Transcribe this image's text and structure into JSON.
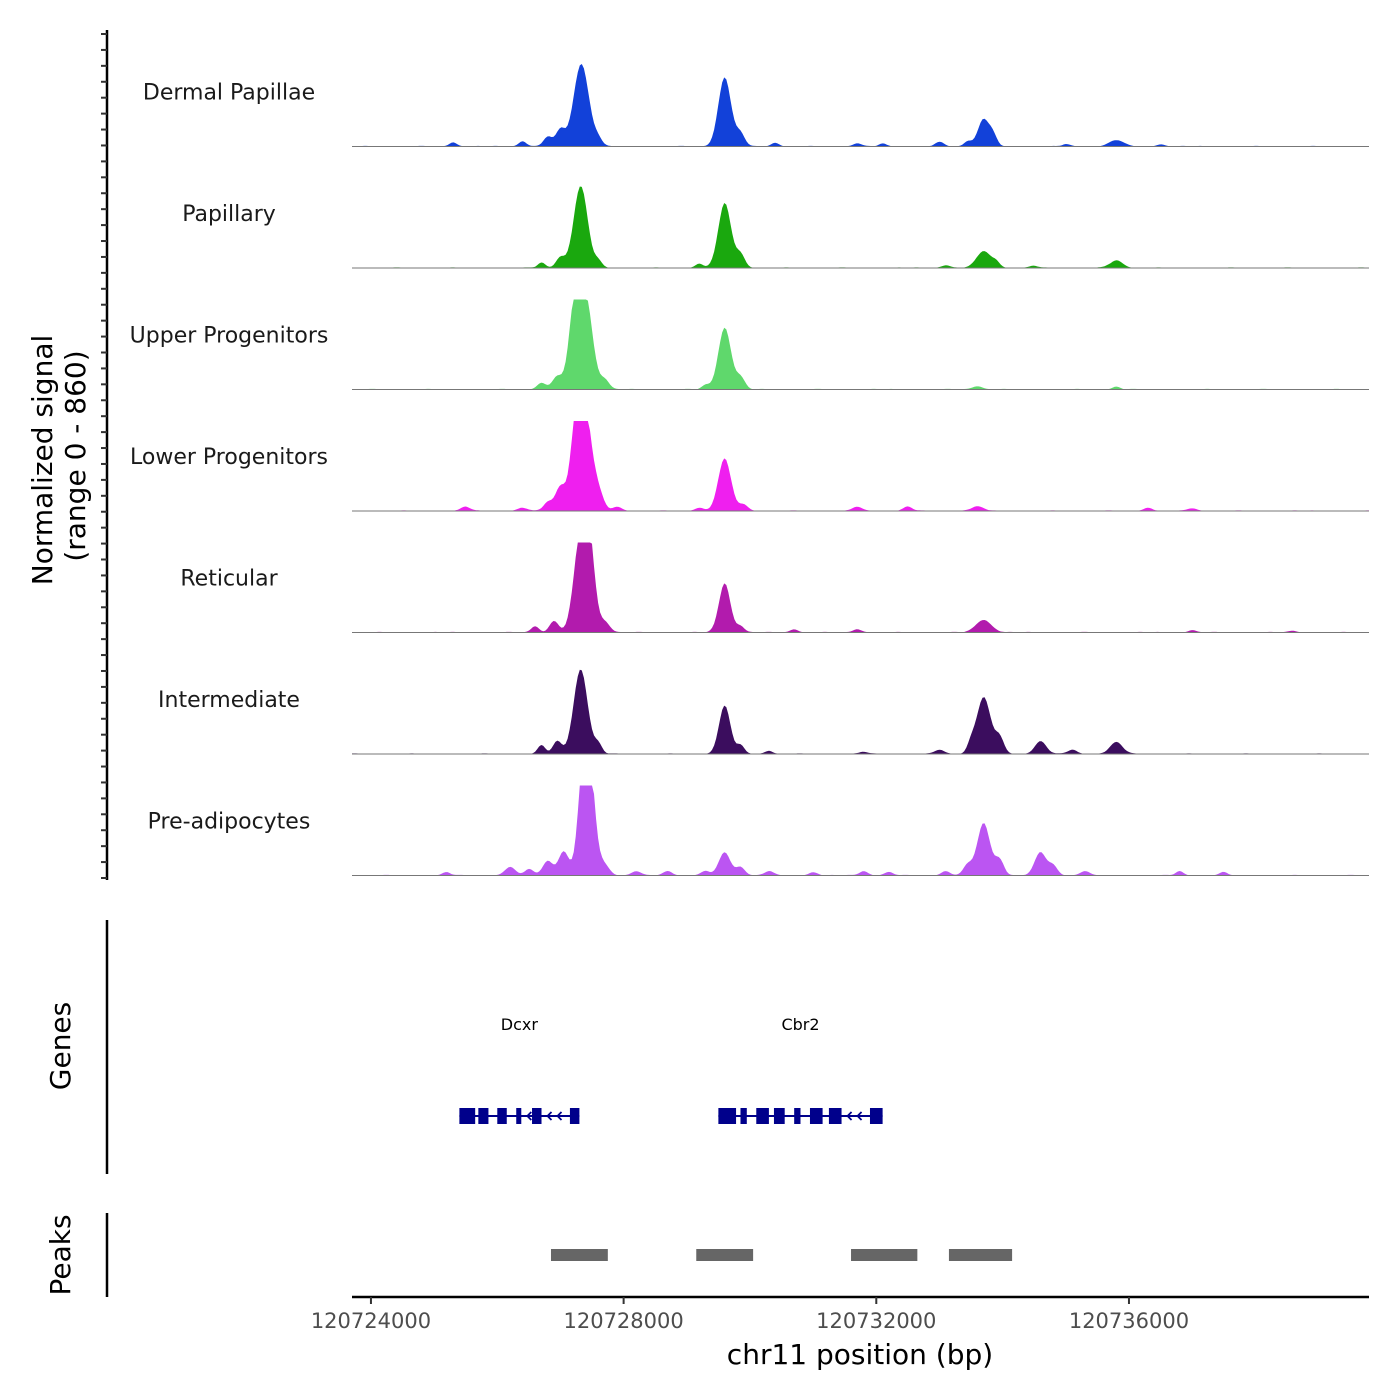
{
  "chart_data": {
    "type": "area",
    "chromosome": "chr11",
    "x_range": [
      120723700,
      120739800
    ],
    "y_label_line1": "Normalized signal",
    "y_label_line2": "(range 0 - 860)",
    "y_range": [
      0,
      860
    ],
    "xlabel": "chr11 position (bp)",
    "x_ticks": [
      {
        "value": 120724000,
        "label": "120724000"
      },
      {
        "value": 120728000,
        "label": "120728000"
      },
      {
        "value": 120732000,
        "label": "120732000"
      },
      {
        "value": 120736000,
        "label": "120736000"
      }
    ],
    "tracks": [
      {
        "name": "Dermal Papillae",
        "color": "#1241d9",
        "peaks": [
          [
            120725300,
            40,
            60
          ],
          [
            120726400,
            50,
            60
          ],
          [
            120726800,
            90,
            70
          ],
          [
            120727000,
            160,
            70
          ],
          [
            120727330,
            790,
            120
          ],
          [
            120727600,
            60,
            60
          ],
          [
            120729600,
            660,
            100
          ],
          [
            120729850,
            120,
            70
          ],
          [
            120730400,
            35,
            60
          ],
          [
            120731700,
            30,
            60
          ],
          [
            120732100,
            25,
            60
          ],
          [
            120733000,
            40,
            70
          ],
          [
            120733450,
            50,
            60
          ],
          [
            120733700,
            260,
            90
          ],
          [
            120733850,
            90,
            60
          ],
          [
            120735000,
            20,
            60
          ],
          [
            120735800,
            60,
            110
          ],
          [
            120736500,
            20,
            60
          ]
        ]
      },
      {
        "name": "Papillary",
        "color": "#1aa80e",
        "peaks": [
          [
            120726700,
            50,
            60
          ],
          [
            120727000,
            100,
            70
          ],
          [
            120727320,
            780,
            110
          ],
          [
            120727600,
            60,
            60
          ],
          [
            120729200,
            40,
            60
          ],
          [
            120729600,
            620,
            100
          ],
          [
            120729850,
            130,
            70
          ],
          [
            120733100,
            25,
            70
          ],
          [
            120733700,
            160,
            110
          ],
          [
            120733900,
            50,
            60
          ],
          [
            120734500,
            20,
            60
          ],
          [
            120735800,
            70,
            100
          ]
        ]
      },
      {
        "name": "Upper Progenitors",
        "color": "#5fd86c",
        "peaks": [
          [
            120726700,
            60,
            70
          ],
          [
            120726950,
            120,
            80
          ],
          [
            120727220,
            720,
            90
          ],
          [
            120727400,
            850,
            110
          ],
          [
            120727700,
            90,
            70
          ],
          [
            120729300,
            40,
            60
          ],
          [
            120729600,
            590,
            100
          ],
          [
            120729850,
            110,
            70
          ],
          [
            120733600,
            30,
            80
          ],
          [
            120735800,
            25,
            60
          ]
        ]
      },
      {
        "name": "Lower Progenitors",
        "color": "#ef1fef",
        "peaks": [
          [
            120725500,
            40,
            70
          ],
          [
            120726400,
            30,
            70
          ],
          [
            120726800,
            80,
            70
          ],
          [
            120727000,
            230,
            80
          ],
          [
            120727250,
            800,
            90
          ],
          [
            120727400,
            850,
            100
          ],
          [
            120727600,
            170,
            80
          ],
          [
            120727900,
            40,
            70
          ],
          [
            120729200,
            30,
            70
          ],
          [
            120729600,
            500,
            100
          ],
          [
            120729900,
            60,
            70
          ],
          [
            120731700,
            40,
            70
          ],
          [
            120732500,
            40,
            70
          ],
          [
            120733600,
            40,
            100
          ],
          [
            120736300,
            30,
            70
          ],
          [
            120737000,
            25,
            70
          ]
        ]
      },
      {
        "name": "Reticular",
        "color": "#b21bad",
        "peaks": [
          [
            120726600,
            60,
            60
          ],
          [
            120726900,
            110,
            70
          ],
          [
            120727300,
            780,
            100
          ],
          [
            120727450,
            860,
            90
          ],
          [
            120727700,
            100,
            80
          ],
          [
            120729600,
            470,
            90
          ],
          [
            120729850,
            60,
            60
          ],
          [
            120730700,
            30,
            60
          ],
          [
            120731700,
            30,
            70
          ],
          [
            120733700,
            120,
            120
          ],
          [
            120737000,
            20,
            60
          ],
          [
            120738600,
            15,
            60
          ]
        ]
      },
      {
        "name": "Intermediate",
        "color": "#3b0d5e",
        "peaks": [
          [
            120726700,
            80,
            60
          ],
          [
            120726950,
            120,
            70
          ],
          [
            120727320,
            810,
            110
          ],
          [
            120727600,
            90,
            60
          ],
          [
            120729600,
            460,
            90
          ],
          [
            120729850,
            80,
            60
          ],
          [
            120730300,
            30,
            60
          ],
          [
            120731800,
            20,
            60
          ],
          [
            120733000,
            40,
            70
          ],
          [
            120733500,
            80,
            60
          ],
          [
            120733700,
            540,
            110
          ],
          [
            120733950,
            150,
            70
          ],
          [
            120734600,
            120,
            90
          ],
          [
            120735100,
            40,
            70
          ],
          [
            120735800,
            110,
            100
          ]
        ]
      },
      {
        "name": "Pre-adipocytes",
        "color": "#bb55f2",
        "peaks": [
          [
            120725200,
            30,
            60
          ],
          [
            120726200,
            80,
            80
          ],
          [
            120726500,
            60,
            70
          ],
          [
            120726800,
            140,
            80
          ],
          [
            120727050,
            230,
            80
          ],
          [
            120727380,
            860,
            90
          ],
          [
            120727450,
            780,
            100
          ],
          [
            120727700,
            90,
            80
          ],
          [
            120728200,
            40,
            70
          ],
          [
            120728700,
            40,
            70
          ],
          [
            120729300,
            40,
            70
          ],
          [
            120729600,
            220,
            90
          ],
          [
            120729850,
            80,
            70
          ],
          [
            120730300,
            40,
            70
          ],
          [
            120731000,
            30,
            70
          ],
          [
            120731800,
            40,
            70
          ],
          [
            120732200,
            30,
            70
          ],
          [
            120733100,
            40,
            70
          ],
          [
            120733450,
            100,
            70
          ],
          [
            120733700,
            500,
            100
          ],
          [
            120733950,
            150,
            70
          ],
          [
            120734600,
            220,
            90
          ],
          [
            120734800,
            90,
            70
          ],
          [
            120735300,
            40,
            70
          ],
          [
            120736800,
            40,
            60
          ],
          [
            120737500,
            30,
            60
          ]
        ]
      }
    ],
    "genes": [
      {
        "name": "Dcxr",
        "start": 120725400,
        "end": 120727300,
        "color": "#00008b",
        "exons": [
          [
            120725400,
            120725650
          ],
          [
            120725700,
            120725860
          ],
          [
            120726000,
            120726150
          ],
          [
            120726300,
            120726380
          ],
          [
            120726550,
            120726700
          ],
          [
            120727150,
            120727300
          ]
        ]
      },
      {
        "name": "Cbr2",
        "start": 120729500,
        "end": 120732100,
        "color": "#00008b",
        "exons": [
          [
            120729500,
            120729780
          ],
          [
            120729850,
            120729950
          ],
          [
            120730100,
            120730300
          ],
          [
            120730380,
            120730550
          ],
          [
            120730700,
            120730800
          ],
          [
            120730950,
            120731150
          ],
          [
            120731250,
            120731450
          ],
          [
            120731900,
            120732100
          ]
        ]
      }
    ],
    "peaks_track": [
      [
        120726850,
        120727750
      ],
      [
        120729150,
        120730050
      ],
      [
        120731600,
        120732650
      ],
      [
        120733150,
        120734150
      ]
    ],
    "gene_track_title": "Genes",
    "peak_track_title": "Peaks",
    "baseline_color": "#777777",
    "peak_bar_color": "#666666"
  }
}
